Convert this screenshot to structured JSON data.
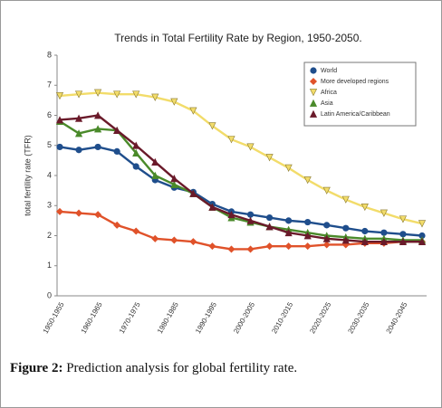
{
  "chart_data": {
    "type": "line",
    "title": "Trends in Total Fertility Rate by Region, 1950-2050.",
    "y_label": "total fertility rate (TFR)",
    "categories": [
      "1950-1955",
      null,
      "1960-1965",
      null,
      "1970-1975",
      null,
      "1980-1985",
      null,
      "1990-1995",
      null,
      "2000-2005",
      null,
      "2010-2015",
      null,
      "2020-2025",
      null,
      "2030-2035",
      null,
      "2040-2045",
      null
    ],
    "ylim": [
      0,
      8
    ],
    "yticks": [
      0,
      1,
      2,
      3,
      4,
      5,
      6,
      7,
      8
    ],
    "grid": false,
    "legend": "top-right",
    "series": [
      {
        "name": "World",
        "color": "#1f4e8c",
        "marker": "circle",
        "values": [
          4.95,
          4.85,
          4.95,
          4.8,
          4.3,
          3.85,
          3.6,
          3.45,
          3.05,
          2.8,
          2.7,
          2.6,
          2.5,
          2.45,
          2.35,
          2.25,
          2.15,
          2.1,
          2.05,
          2.0
        ]
      },
      {
        "name": "More developed regions",
        "color": "#e0522a",
        "marker": "diamond",
        "values": [
          2.8,
          2.75,
          2.7,
          2.35,
          2.15,
          1.9,
          1.85,
          1.8,
          1.65,
          1.55,
          1.55,
          1.65,
          1.65,
          1.65,
          1.7,
          1.7,
          1.75,
          1.75,
          1.8,
          1.8
        ]
      },
      {
        "name": "Africa",
        "color": "#f2dc6a",
        "marker": "triangle-down",
        "values": [
          6.65,
          6.7,
          6.75,
          6.7,
          6.7,
          6.6,
          6.45,
          6.15,
          5.65,
          5.2,
          4.95,
          4.6,
          4.25,
          3.85,
          3.5,
          3.2,
          2.95,
          2.75,
          2.55,
          2.4
        ]
      },
      {
        "name": "Asia",
        "color": "#4a8a2a",
        "marker": "triangle-up",
        "values": [
          5.8,
          5.4,
          5.55,
          5.5,
          4.75,
          4.0,
          3.7,
          3.4,
          2.95,
          2.6,
          2.45,
          2.3,
          2.2,
          2.1,
          2.0,
          1.95,
          1.9,
          1.9,
          1.85,
          1.85
        ]
      },
      {
        "name": "Latin America/Caribbean",
        "color": "#6a1a2a",
        "marker": "triangle-up",
        "values": [
          5.85,
          5.9,
          6.0,
          5.5,
          5.0,
          4.45,
          3.9,
          3.4,
          2.95,
          2.7,
          2.5,
          2.3,
          2.1,
          2.0,
          1.9,
          1.85,
          1.8,
          1.8,
          1.8,
          1.8
        ]
      }
    ]
  },
  "figure_label": "Figure 2:",
  "caption": "Prediction analysis for global fertility rate."
}
